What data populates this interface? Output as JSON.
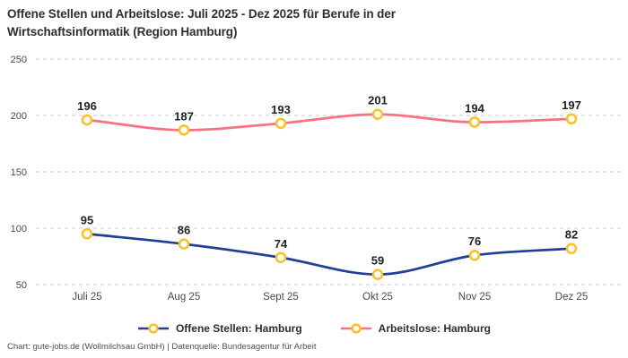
{
  "title": "Offene Stellen und Arbeitslose: Juli 2025 - Dez 2025 für Berufe in der Wirtschaftsinformatik (Region Hamburg)",
  "footer": "Chart: gute-jobs.de (Wollmilchsau GmbH) | Datenquelle: Bundesagentur für Arbeit",
  "chart_data": {
    "type": "line",
    "title": "Offene Stellen und Arbeitslose: Juli 2025 - Dez 2025 für Berufe in der Wirtschaftsinformatik (Region Hamburg)",
    "categories": [
      "Juli 25",
      "Aug 25",
      "Sept 25",
      "Okt 25",
      "Nov 25",
      "Dez 25"
    ],
    "series": [
      {
        "name": "Offene Stellen: Hamburg",
        "values": [
          95,
          86,
          74,
          59,
          76,
          82
        ],
        "color": "#213e99"
      },
      {
        "name": "Arbeitslose: Hamburg",
        "values": [
          196,
          187,
          193,
          201,
          194,
          197
        ],
        "color": "#fa7185"
      }
    ],
    "marker": {
      "shape": "ring",
      "fill": "#ffffff",
      "stroke": "#fcc120"
    },
    "y_ticks": [
      50,
      100,
      150,
      200,
      250
    ],
    "ylim": [
      50,
      250
    ],
    "xlabel": "",
    "ylabel": "",
    "grid": "dashed-horizontal",
    "grid_color": "#c9c9c9",
    "value_labels": true,
    "value_label_color": "#222222",
    "axis_label_color": "#4a4a4a",
    "legend_position": "bottom"
  }
}
